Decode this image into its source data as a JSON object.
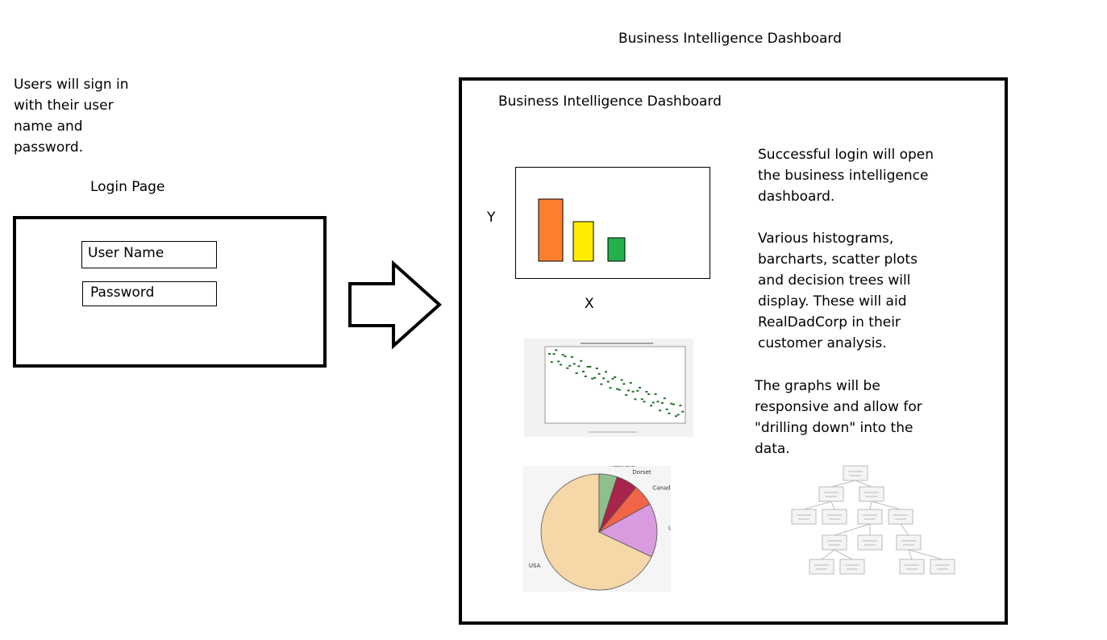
{
  "page_title": "Business Intelligence Dashboard",
  "login": {
    "description": "Users will sign in\nwith their user\nname and\npassword.",
    "label": "Login Page",
    "username_placeholder": "User Name",
    "password_placeholder": "Password"
  },
  "dashboard": {
    "title": "Business Intelligence Dashboard",
    "bar_chart": {
      "y_label": "Y",
      "x_label": "X",
      "bar_colors": [
        "#fe7f2d",
        "#ffec00",
        "#22b14c"
      ]
    },
    "description_1": "Successful login will open\nthe business intelligence\ndashboard.",
    "description_2": "Various histograms,\nbarcharts, scatter plots\nand decision trees will\ndisplay.  These will aid\nRealDadCorp in their\ncustomer analysis.",
    "description_3": "The graphs will be\nresponsive and allow for\n\"drilling down\" into the\ndata.",
    "pie_labels": [
      "Australia",
      "Dorset",
      "Canada",
      "UK",
      "USA"
    ]
  },
  "chart_data": [
    {
      "type": "bar",
      "categories": [
        "",
        "",
        ""
      ],
      "values": [
        77,
        49,
        29
      ],
      "xlabel": "X",
      "ylabel": "Y",
      "ylim": [
        0,
        100
      ],
      "grid": false
    },
    {
      "type": "pie",
      "categories": [
        "USA",
        "UK",
        "Canada",
        "Dorset",
        "Australia"
      ],
      "values": [
        68,
        15,
        6,
        6,
        5
      ]
    }
  ]
}
